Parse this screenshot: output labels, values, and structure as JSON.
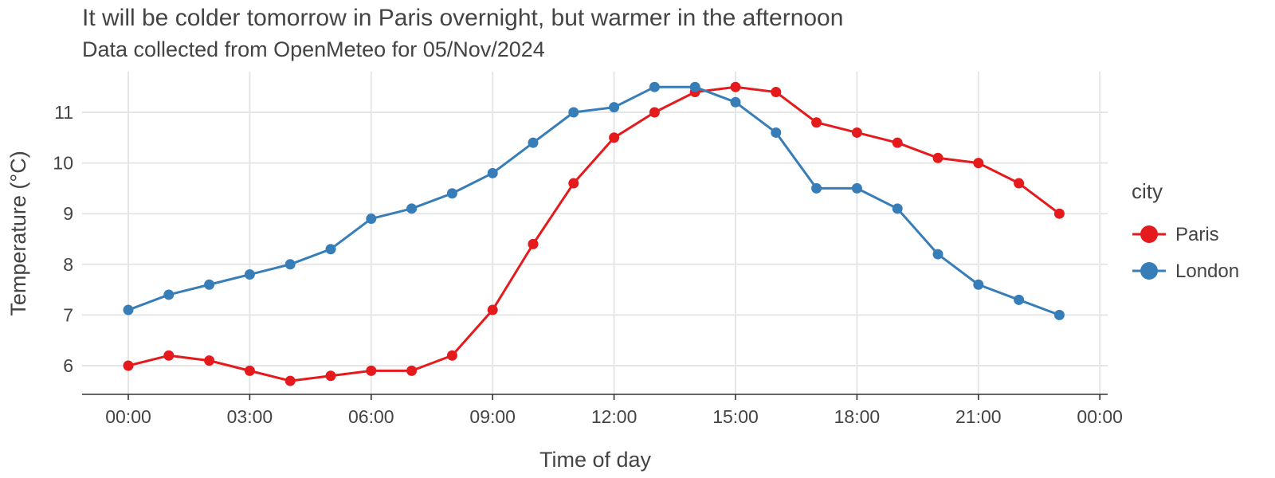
{
  "chart_data": {
    "type": "line",
    "title": "It will be colder tomorrow in Paris overnight, but warmer in the afternoon",
    "subtitle": "Data collected from OpenMeteo for 05/Nov/2024",
    "xlabel": "Time of day",
    "ylabel": "Temperature (°C)",
    "x": [
      "00:00",
      "01:00",
      "02:00",
      "03:00",
      "04:00",
      "05:00",
      "06:00",
      "07:00",
      "08:00",
      "09:00",
      "10:00",
      "11:00",
      "12:00",
      "13:00",
      "14:00",
      "15:00",
      "16:00",
      "17:00",
      "18:00",
      "19:00",
      "20:00",
      "21:00",
      "22:00",
      "23:00"
    ],
    "x_ticks": [
      "00:00",
      "03:00",
      "06:00",
      "09:00",
      "12:00",
      "15:00",
      "18:00",
      "21:00",
      "00:00"
    ],
    "y_ticks": [
      6,
      7,
      8,
      9,
      10,
      11
    ],
    "ylim": [
      5.45,
      11.75
    ],
    "grid": true,
    "legend": {
      "title": "city",
      "position": "right"
    },
    "series": [
      {
        "name": "Paris",
        "color": "#e41a1c",
        "values": [
          6.0,
          6.2,
          6.1,
          5.9,
          5.7,
          5.8,
          5.9,
          5.9,
          6.2,
          7.1,
          8.4,
          9.6,
          10.5,
          11.0,
          11.4,
          11.5,
          11.4,
          10.8,
          10.6,
          10.4,
          10.1,
          10.0,
          9.6,
          9.0
        ]
      },
      {
        "name": "London",
        "color": "#377eb8",
        "values": [
          7.1,
          7.4,
          7.6,
          7.8,
          8.0,
          8.3,
          8.9,
          9.1,
          9.4,
          9.8,
          10.4,
          11.0,
          11.1,
          11.5,
          11.5,
          11.2,
          10.6,
          9.5,
          9.5,
          9.1,
          8.2,
          7.6,
          7.3,
          7.0
        ]
      }
    ]
  }
}
